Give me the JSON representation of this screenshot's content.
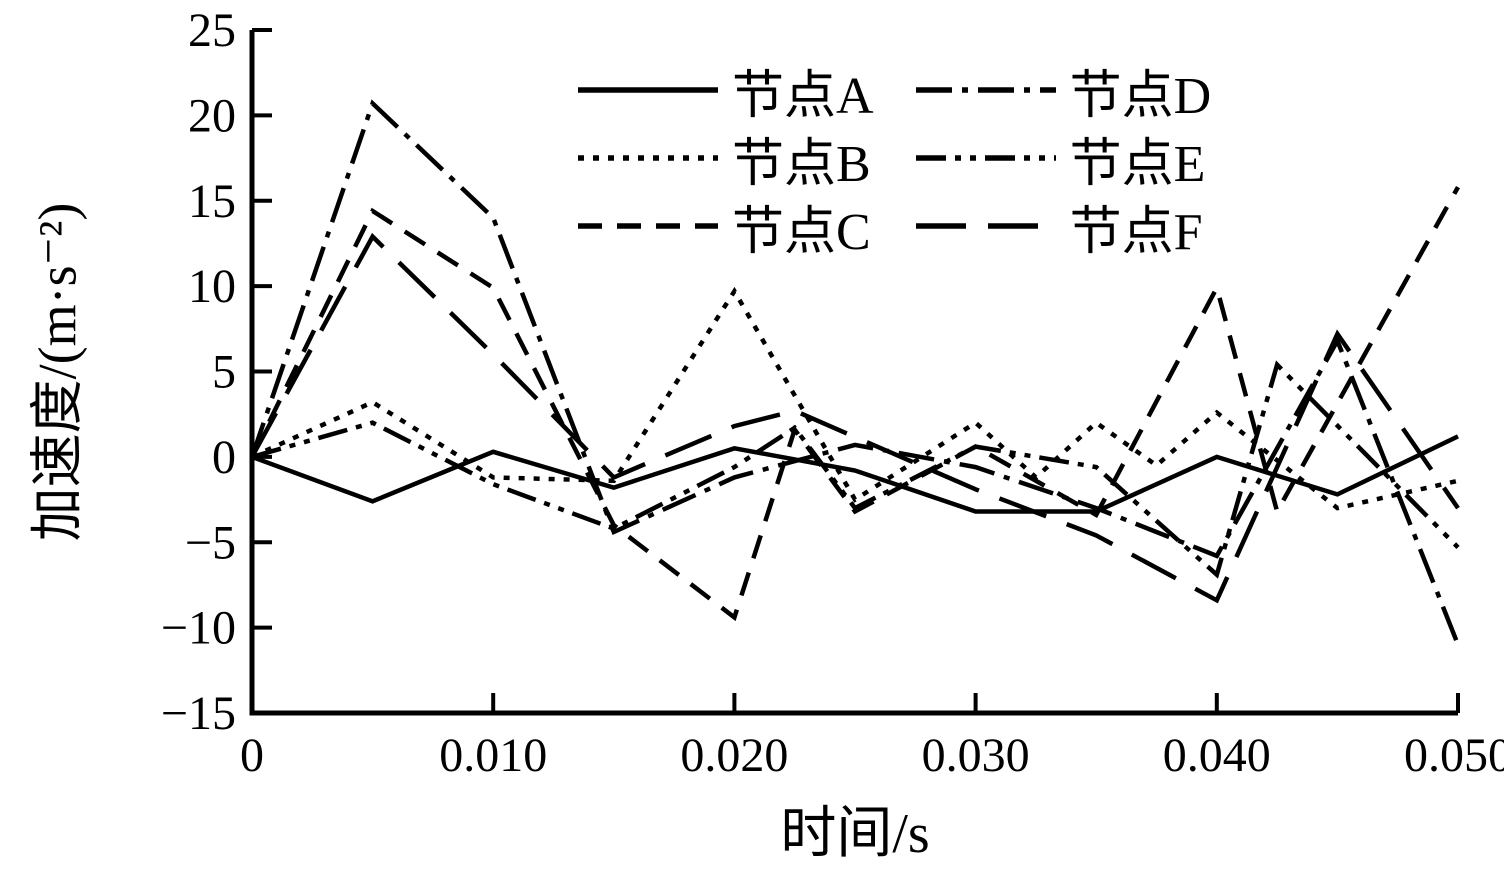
{
  "figure": {
    "background": "#ffffff",
    "line_color": "#000000"
  },
  "chart_data": {
    "type": "line",
    "title": "",
    "xlabel": "时间/s",
    "ylabel": "加速度/(m·s⁻²)",
    "xlim": [
      0,
      0.05
    ],
    "ylim": [
      -15,
      25
    ],
    "grid": false,
    "legend_position": "top-center-two-columns",
    "x_ticks": {
      "values": [
        0,
        0.01,
        0.02,
        0.03,
        0.04,
        0.05
      ],
      "labels": [
        "0",
        "0.010",
        "0.020",
        "0.030",
        "0.040",
        "0.050"
      ]
    },
    "y_ticks": {
      "values": [
        -15,
        -10,
        -5,
        0,
        5,
        10,
        15,
        20,
        25
      ],
      "labels": [
        "−15",
        "−10",
        "−5",
        "0",
        "5",
        "10",
        "15",
        "20",
        "25"
      ]
    },
    "series": [
      {
        "name": "节点A",
        "line_style": "solid",
        "dash": "",
        "color": "#000000",
        "points": [
          [
            0,
            0
          ],
          [
            0.005,
            -2.6
          ],
          [
            0.01,
            0.3
          ],
          [
            0.015,
            -1.8
          ],
          [
            0.02,
            0.5
          ],
          [
            0.025,
            -0.8
          ],
          [
            0.03,
            -3.2
          ],
          [
            0.035,
            -3.2
          ],
          [
            0.04,
            0
          ],
          [
            0.045,
            -2.2
          ],
          [
            0.05,
            1.2
          ]
        ]
      },
      {
        "name": "节点B",
        "line_style": "dotted",
        "dash": "6 9",
        "color": "#000000",
        "points": [
          [
            0,
            0
          ],
          [
            0.005,
            3.2
          ],
          [
            0.01,
            -1.2
          ],
          [
            0.015,
            -1.4
          ],
          [
            0.02,
            9.7
          ],
          [
            0.025,
            -2.5
          ],
          [
            0.03,
            2
          ],
          [
            0.0325,
            -1.2
          ],
          [
            0.035,
            2
          ],
          [
            0.0375,
            -0.5
          ],
          [
            0.04,
            2.6
          ],
          [
            0.045,
            -3
          ],
          [
            0.05,
            -1.4
          ]
        ]
      },
      {
        "name": "节点C",
        "line_style": "dashed",
        "dash": "24 15",
        "color": "#000000",
        "points": [
          [
            0,
            0
          ],
          [
            0.005,
            14.4
          ],
          [
            0.01,
            9.9
          ],
          [
            0.015,
            -4
          ],
          [
            0.02,
            -9.4
          ],
          [
            0.0225,
            1.6
          ],
          [
            0.025,
            -3.2
          ],
          [
            0.03,
            0.6
          ],
          [
            0.035,
            -3.4
          ],
          [
            0.04,
            9.9
          ],
          [
            0.0425,
            -3.2
          ],
          [
            0.05,
            15.8
          ]
        ]
      },
      {
        "name": "节点D",
        "line_style": "dash-dot",
        "dash": "36 10 6 10",
        "color": "#000000",
        "points": [
          [
            0,
            0
          ],
          [
            0.005,
            20.7
          ],
          [
            0.01,
            14
          ],
          [
            0.015,
            -4.4
          ],
          [
            0.02,
            -1.2
          ],
          [
            0.025,
            0.7
          ],
          [
            0.03,
            -0.6
          ],
          [
            0.035,
            -3
          ],
          [
            0.04,
            -5.8
          ],
          [
            0.045,
            6.8
          ],
          [
            0.05,
            -11
          ]
        ]
      },
      {
        "name": "节点E",
        "line_style": "dash-dot-dot",
        "dash": "30 9 6 9 6 9",
        "color": "#000000",
        "points": [
          [
            0,
            0
          ],
          [
            0.005,
            2
          ],
          [
            0.01,
            -1.6
          ],
          [
            0.015,
            -4.2
          ],
          [
            0.02,
            -0.6
          ],
          [
            0.0225,
            1.7
          ],
          [
            0.025,
            -3
          ],
          [
            0.03,
            0.6
          ],
          [
            0.035,
            -0.6
          ],
          [
            0.04,
            -6.9
          ],
          [
            0.0425,
            5.4
          ],
          [
            0.05,
            -5.3
          ]
        ]
      },
      {
        "name": "节点F",
        "line_style": "long-dash",
        "dash": "50 22",
        "color": "#000000",
        "points": [
          [
            0,
            0
          ],
          [
            0.005,
            12.9
          ],
          [
            0.01,
            6
          ],
          [
            0.015,
            -1.2
          ],
          [
            0.02,
            1.8
          ],
          [
            0.0225,
            2.7
          ],
          [
            0.03,
            -1.9
          ],
          [
            0.035,
            -4.6
          ],
          [
            0.04,
            -8.4
          ],
          [
            0.045,
            7.2
          ],
          [
            0.05,
            -3
          ]
        ]
      }
    ]
  }
}
